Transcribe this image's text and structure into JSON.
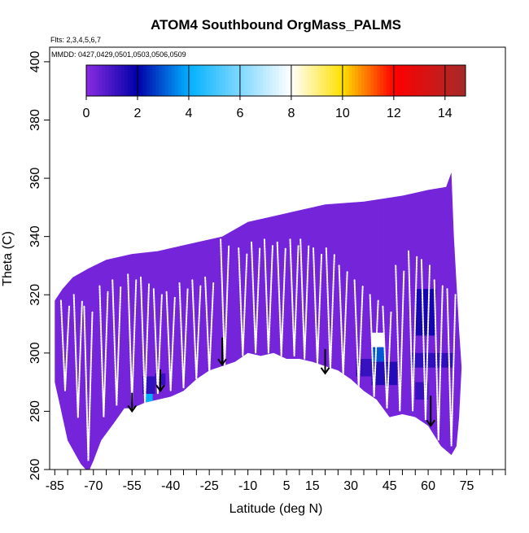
{
  "chart_data": {
    "type": "heatmap",
    "title": "ATOM4 Southbound OrgMass_PALMS",
    "flights_note": "Flts: 2,3,4,5,6,7",
    "dates_note": "MMDD: 0427,0429,0501,0503,0506,0509",
    "xlabel": "Latitude (deg N)",
    "ylabel": "Theta (C)",
    "xlim": [
      -87,
      90
    ],
    "ylim": [
      260,
      405
    ],
    "x_ticks": [
      -85,
      -70,
      -55,
      -40,
      -25,
      -10,
      5,
      15,
      30,
      45,
      60,
      75
    ],
    "x_minor_ticks": [
      -80,
      -75,
      -65,
      -60,
      -50,
      -45,
      -35,
      -30,
      -20,
      -15,
      -5,
      0,
      10,
      20,
      25,
      35,
      40,
      50,
      55,
      65,
      70,
      80,
      85,
      90
    ],
    "y_ticks": [
      260,
      280,
      300,
      320,
      340,
      360,
      380,
      400
    ],
    "colorbar": {
      "range": [
        0,
        14.8
      ],
      "ticks": [
        0,
        2,
        4,
        6,
        8,
        10,
        12,
        14
      ],
      "colors": [
        "#8a2be2",
        "#0000a8",
        "#00b0ff",
        "#ffffff",
        "#ffe000",
        "#ff0000",
        "#a52a2a"
      ],
      "stops": [
        0,
        2,
        4,
        8,
        10,
        12,
        14.8
      ]
    },
    "background_value": 0.3,
    "domain_upper": [
      [
        -85,
        318
      ],
      [
        -82,
        322
      ],
      [
        -78,
        326
      ],
      [
        -72,
        329
      ],
      [
        -65,
        332
      ],
      [
        -55,
        334
      ],
      [
        -45,
        335
      ],
      [
        -35,
        337
      ],
      [
        -20,
        340
      ],
      [
        -10,
        345
      ],
      [
        0,
        347
      ],
      [
        10,
        349
      ],
      [
        20,
        351
      ],
      [
        35,
        352
      ],
      [
        50,
        354
      ],
      [
        60,
        356
      ],
      [
        67,
        357
      ],
      [
        69,
        362
      ],
      [
        70,
        340
      ],
      [
        72,
        308
      ],
      [
        73,
        295
      ]
    ],
    "domain_lower": [
      [
        73,
        295
      ],
      [
        72,
        278
      ],
      [
        71,
        268
      ],
      [
        69,
        265
      ],
      [
        65,
        268
      ],
      [
        60,
        275
      ],
      [
        55,
        278
      ],
      [
        50,
        279
      ],
      [
        45,
        278
      ],
      [
        40,
        284
      ],
      [
        35,
        287
      ],
      [
        30,
        291
      ],
      [
        25,
        294
      ],
      [
        15,
        297
      ],
      [
        10,
        298
      ],
      [
        5,
        298
      ],
      [
        0,
        300
      ],
      [
        -5,
        299
      ],
      [
        -10,
        300
      ],
      [
        -15,
        297
      ],
      [
        -25,
        294
      ],
      [
        -30,
        291
      ],
      [
        -35,
        287
      ],
      [
        -40,
        285
      ],
      [
        -45,
        284
      ],
      [
        -50,
        283
      ],
      [
        -55,
        281
      ],
      [
        -58,
        281
      ],
      [
        -62,
        276
      ],
      [
        -67,
        270
      ],
      [
        -70,
        263
      ],
      [
        -72,
        259
      ],
      [
        -75,
        262
      ],
      [
        -80,
        270
      ],
      [
        -83,
        282
      ],
      [
        -85,
        290
      ]
    ],
    "enhanced_regions": [
      {
        "lat": [
          38,
          43
        ],
        "theta": [
          302,
          307
        ],
        "value": 8
      },
      {
        "lat": [
          38,
          43
        ],
        "theta": [
          297,
          302
        ],
        "value": 3
      },
      {
        "lat": [
          38,
          48
        ],
        "theta": [
          289,
          297
        ],
        "value": 1.5
      },
      {
        "lat": [
          32,
          38
        ],
        "theta": [
          292,
          298
        ],
        "value": 1.2
      },
      {
        "lat": [
          57,
          61
        ],
        "theta": [
          313,
          318
        ],
        "value": 4
      },
      {
        "lat": [
          55,
          63
        ],
        "theta": [
          306,
          322
        ],
        "value": 1.7
      },
      {
        "lat": [
          53,
          70
        ],
        "theta": [
          295,
          300
        ],
        "value": 1.3
      },
      {
        "lat": [
          55,
          60
        ],
        "theta": [
          284,
          290
        ],
        "value": 1.2
      },
      {
        "lat": [
          -50,
          -47
        ],
        "theta": [
          281,
          286
        ],
        "value": 4
      },
      {
        "lat": [
          -51,
          -46
        ],
        "theta": [
          286,
          292
        ],
        "value": 1.3
      },
      {
        "lat": [
          -46,
          -42
        ],
        "theta": [
          289,
          293
        ],
        "value": 1.2
      }
    ],
    "arrows": [
      {
        "lat": -55,
        "theta_top": 283,
        "theta_bottom": 280
      },
      {
        "lat": -44,
        "theta_top": 291,
        "theta_bottom": 287
      },
      {
        "lat": -20,
        "theta_top": 302,
        "theta_bottom": 296
      },
      {
        "lat": 20,
        "theta_top": 298,
        "theta_bottom": 293
      },
      {
        "lat": 61,
        "theta_top": 282,
        "theta_bottom": 275
      }
    ],
    "flight_profiles": [
      {
        "lat": -81,
        "theta_max": 318,
        "theta_min": 287
      },
      {
        "lat": -76,
        "theta_max": 320,
        "theta_min": 278
      },
      {
        "lat": -72,
        "theta_max": 316,
        "theta_min": 263
      },
      {
        "lat": -66,
        "theta_max": 323,
        "theta_min": 278
      },
      {
        "lat": -61,
        "theta_max": 325,
        "theta_min": 282
      },
      {
        "lat": -55,
        "theta_max": 327,
        "theta_min": 283
      },
      {
        "lat": -50,
        "theta_max": 326,
        "theta_min": 283
      },
      {
        "lat": -45,
        "theta_max": 322,
        "theta_min": 286
      },
      {
        "lat": -40,
        "theta_max": 321,
        "theta_min": 287
      },
      {
        "lat": -35,
        "theta_max": 324,
        "theta_min": 288
      },
      {
        "lat": -30,
        "theta_max": 325,
        "theta_min": 291
      },
      {
        "lat": -25,
        "theta_max": 326,
        "theta_min": 293
      },
      {
        "lat": -19,
        "theta_max": 339,
        "theta_min": 296
      },
      {
        "lat": -12,
        "theta_max": 336,
        "theta_min": 299
      },
      {
        "lat": -7,
        "theta_max": 338,
        "theta_min": 300
      },
      {
        "lat": -2,
        "theta_max": 339,
        "theta_min": 300
      },
      {
        "lat": 3,
        "theta_max": 338,
        "theta_min": 299
      },
      {
        "lat": 8,
        "theta_max": 339,
        "theta_min": 299
      },
      {
        "lat": 12,
        "theta_max": 339,
        "theta_min": 298
      },
      {
        "lat": 17,
        "theta_max": 336,
        "theta_min": 296
      },
      {
        "lat": 22,
        "theta_max": 336,
        "theta_min": 294
      },
      {
        "lat": 27,
        "theta_max": 330,
        "theta_min": 292
      },
      {
        "lat": 33,
        "theta_max": 325,
        "theta_min": 288
      },
      {
        "lat": 39,
        "theta_max": 320,
        "theta_min": 285
      },
      {
        "lat": 44,
        "theta_max": 316,
        "theta_min": 281
      },
      {
        "lat": 49,
        "theta_max": 330,
        "theta_min": 280
      },
      {
        "lat": 54,
        "theta_max": 335,
        "theta_min": 280
      },
      {
        "lat": 59,
        "theta_max": 332,
        "theta_min": 277
      },
      {
        "lat": 64,
        "theta_max": 325,
        "theta_min": 270
      },
      {
        "lat": 69,
        "theta_max": 322,
        "theta_min": 268
      }
    ],
    "grid": false,
    "legend_placement": "top colorbar"
  }
}
